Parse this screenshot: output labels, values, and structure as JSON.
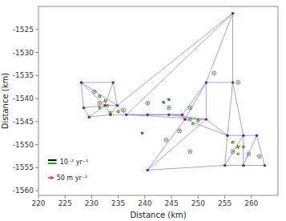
{
  "chart_data": {
    "type": "network",
    "xlabel": "Distance (km)",
    "ylabel": "Distance (km)",
    "xlim": [
      220,
      265
    ],
    "ylim": [
      -1561,
      -1520
    ],
    "xticks": [
      220,
      225,
      230,
      235,
      240,
      245,
      250,
      255,
      260
    ],
    "yticks": [
      -1560,
      -1555,
      -1550,
      -1545,
      -1540,
      -1535,
      -1530,
      -1525
    ],
    "series": [
      {
        "type": "edge",
        "color": "#8888dd",
        "x": [
          [
            228.0,
            234.0
          ],
          [
            228.0,
            228.5
          ],
          [
            228.0,
            232.5
          ],
          [
            234.0,
            232.5
          ],
          [
            234.0,
            234.8
          ],
          [
            228.5,
            232.5
          ],
          [
            228.5,
            229.5
          ],
          [
            232.5,
            229.5
          ],
          [
            232.5,
            233.5
          ],
          [
            232.5,
            234.8
          ],
          [
            234.8,
            233.5
          ],
          [
            234.8,
            236.5
          ],
          [
            233.5,
            236.5
          ],
          [
            233.5,
            229.5
          ],
          [
            236.5,
            240.5
          ],
          [
            240.5,
            244.5
          ],
          [
            244.5,
            247.0
          ],
          [
            247.0,
            247.5
          ],
          [
            247.0,
            251.5
          ],
          [
            247.5,
            251.5
          ],
          [
            247.5,
            251.5
          ],
          [
            247.5,
            255.5
          ],
          [
            251.5,
            256.5
          ],
          [
            251.5,
            251.5
          ],
          [
            251.5,
            255.5
          ],
          [
            256.5,
            251.5
          ],
          [
            256.5,
            256.5
          ],
          [
            256.5,
            234.8
          ],
          [
            256.5,
            236.5
          ],
          [
            256.5,
            255.5
          ],
          [
            256.5,
            258.5
          ],
          [
            255.5,
            258.5
          ],
          [
            255.5,
            255.0
          ],
          [
            258.5,
            261.0
          ],
          [
            258.5,
            255.0
          ],
          [
            258.5,
            258.5
          ],
          [
            261.0,
            258.5
          ],
          [
            261.0,
            262.5
          ],
          [
            258.5,
            262.5
          ],
          [
            258.5,
            255.0
          ],
          [
            240.5,
            255.0
          ],
          [
            240.5,
            247.5
          ],
          [
            240.5,
            251.5
          ],
          [
            228.0,
            234.8
          ],
          [
            236.5,
            247.0
          ],
          [
            240.5,
            247.0
          ],
          [
            236.5,
            251.5
          ],
          [
            244.5,
            251.5
          ]
        ],
        "values": [
          [
            -1536.5,
            -1536.5
          ],
          [
            -1536.5,
            -1542.0
          ],
          [
            -1536.5,
            -1541.5
          ],
          [
            -1536.5,
            -1541.5
          ],
          [
            -1536.5,
            -1541.5
          ],
          [
            -1542.0,
            -1541.5
          ],
          [
            -1542.0,
            -1544.0
          ],
          [
            -1541.5,
            -1544.0
          ],
          [
            -1541.5,
            -1543.5
          ],
          [
            -1541.5,
            -1541.5
          ],
          [
            -1541.5,
            -1543.5
          ],
          [
            -1541.5,
            -1543.5
          ],
          [
            -1543.5,
            -1543.5
          ],
          [
            -1543.5,
            -1544.0
          ],
          [
            -1543.5,
            -1543.5
          ],
          [
            -1543.5,
            -1543.5
          ],
          [
            -1543.5,
            -1543.5
          ],
          [
            -1543.5,
            -1544.5
          ],
          [
            -1543.5,
            -1536.5
          ],
          [
            -1544.5,
            -1544.5
          ],
          [
            -1544.5,
            -1536.5
          ],
          [
            -1544.5,
            -1548.0
          ],
          [
            -1536.5,
            -1536.5
          ],
          [
            -1536.5,
            -1544.5
          ],
          [
            -1544.5,
            -1548.0
          ],
          [
            -1521.5,
            -1536.5
          ],
          [
            -1521.5,
            -1536.5
          ],
          [
            -1521.5,
            -1541.5
          ],
          [
            -1521.5,
            -1543.5
          ],
          [
            -1536.5,
            -1548.0
          ],
          [
            -1536.5,
            -1548.0
          ],
          [
            -1548.0,
            -1548.0
          ],
          [
            -1548.0,
            -1554.5
          ],
          [
            -1548.0,
            -1548.0
          ],
          [
            -1548.0,
            -1554.5
          ],
          [
            -1548.0,
            -1554.5
          ],
          [
            -1548.0,
            -1554.5
          ],
          [
            -1548.0,
            -1554.5
          ],
          [
            -1554.5,
            -1554.5
          ],
          [
            -1554.5,
            -1554.5
          ],
          [
            -1555.5,
            -1554.5
          ],
          [
            -1555.5,
            -1544.5
          ],
          [
            -1555.5,
            -1544.5
          ],
          [
            -1536.5,
            -1541.5
          ],
          [
            -1543.5,
            -1543.5
          ],
          [
            -1543.5,
            -1543.5
          ],
          [
            -1543.5,
            -1544.5
          ],
          [
            -1543.5,
            -1544.5
          ]
        ]
      },
      {
        "type": "node",
        "color": "#1a1aff",
        "x": [
          228.0,
          234.0,
          228.5,
          232.5,
          234.8,
          229.5,
          233.5,
          236.5,
          240.5,
          244.5,
          247.0,
          256.5,
          251.5,
          256.5,
          247.5,
          251.5,
          255.5,
          258.5,
          261.0,
          255.0,
          258.5,
          262.5,
          240.5
        ],
        "values": [
          -1536.5,
          -1536.5,
          -1542.0,
          -1541.5,
          -1541.5,
          -1544.0,
          -1543.5,
          -1543.5,
          -1543.5,
          -1543.5,
          -1543.5,
          -1521.5,
          -1536.5,
          -1536.5,
          -1544.5,
          -1544.5,
          -1548.0,
          -1548.0,
          -1548.0,
          -1554.5,
          -1554.5,
          -1554.5,
          -1555.5
        ]
      },
      {
        "type": "circled_node",
        "colors": [
          "#444444",
          "#333333"
        ],
        "x": [
          230.5,
          231.5,
          236.0,
          240.5,
          244.5,
          248.5,
          246.5,
          248.5,
          244.0,
          257.5,
          253.0,
          256.5,
          259.5,
          261.5
        ],
        "values": [
          -1538.5,
          -1541.0,
          -1542.5,
          -1541.0,
          -1542.0,
          -1542.0,
          -1547.0,
          -1551.5,
          -1549.0,
          -1536.5,
          -1534.5,
          -1551.5,
          -1552.0,
          -1552.5
        ]
      },
      {
        "type": "velocity",
        "name": "50 m yr⁻¹",
        "color": "#ee1111",
        "legend_length": 1.0,
        "x": [
          228.0,
          234.0,
          228.5,
          232.5,
          234.8,
          229.5,
          233.5,
          236.5,
          240.5,
          244.5,
          247.0,
          247.5,
          251.5,
          251.5,
          256.5,
          256.5,
          255.5,
          258.5,
          261.0,
          255.0,
          258.5,
          262.5,
          240.5
        ],
        "values": [
          -1536.5,
          -1536.5,
          -1542.0,
          -1541.5,
          -1541.5,
          -1544.0,
          -1543.5,
          -1543.5,
          -1543.5,
          -1543.5,
          -1543.5,
          -1544.5,
          -1544.5,
          -1536.5,
          -1536.5,
          -1521.5,
          -1548.0,
          -1548.0,
          -1548.0,
          -1554.5,
          -1554.5,
          -1554.5,
          -1555.5
        ],
        "dx": [
          0.35,
          0.3,
          0.3,
          0.32,
          0.3,
          0.3,
          0.32,
          0.28,
          0.25,
          0.28,
          0.3,
          0.32,
          0.3,
          0.28,
          0.28,
          0.3,
          0.3,
          0.28,
          0.25,
          0.3,
          0.28,
          0.22,
          0.3
        ],
        "dy": [
          -0.12,
          -0.1,
          -0.1,
          -0.08,
          -0.1,
          -0.08,
          -0.06,
          -0.1,
          -0.1,
          -0.08,
          -0.1,
          -0.1,
          -0.1,
          -0.1,
          -0.08,
          -0.08,
          -0.1,
          -0.1,
          -0.08,
          -0.1,
          -0.12,
          -0.08,
          -0.1
        ]
      },
      {
        "type": "strain",
        "name": "10⁻² yr⁻¹",
        "colors": [
          "#000000",
          "#00bb00",
          "gold"
        ],
        "legend_length": 1.6,
        "x": [
          231.5,
          232.5,
          231.5,
          233.0,
          233.5,
          235.0,
          248.5,
          250.0,
          249.0,
          256.5,
          257.5,
          258.5,
          257.5
        ],
        "values": [
          -1539.5,
          -1540.5,
          -1542.0,
          -1541.5,
          -1543.0,
          -1542.8,
          -1544.5,
          -1544.8,
          -1545.5,
          -1549.5,
          -1550.5,
          -1550.5,
          -1552.0
        ],
        "angle_deg": [
          120,
          110,
          115,
          105,
          120,
          110,
          115,
          105,
          120,
          115,
          110,
          105,
          120
        ],
        "black_half_length": [
          0.28,
          0.315,
          0.28,
          0.28,
          0.245,
          0.28,
          0.245,
          0.28,
          0.245,
          0.28,
          0.315,
          0.28,
          0.245
        ],
        "green_half_length": [
          0.342,
          0.38,
          0.304,
          0.342,
          0.304,
          0.342,
          0.342,
          0.38,
          0.304,
          0.38,
          0.418,
          0.342,
          0.304
        ]
      },
      {
        "type": "strain",
        "colors": [
          "#000000",
          "#00bb00"
        ],
        "x": [
          239.5,
          243.5,
          244.5
        ],
        "values": [
          -1547.5,
          -1540.8,
          -1540.2
        ],
        "angle_deg": [
          135,
          140,
          140
        ],
        "black_half_length": [
          0.28,
          0.28,
          0.28
        ],
        "green_half_length": [
          0.32,
          0.32,
          0.32
        ]
      }
    ]
  }
}
